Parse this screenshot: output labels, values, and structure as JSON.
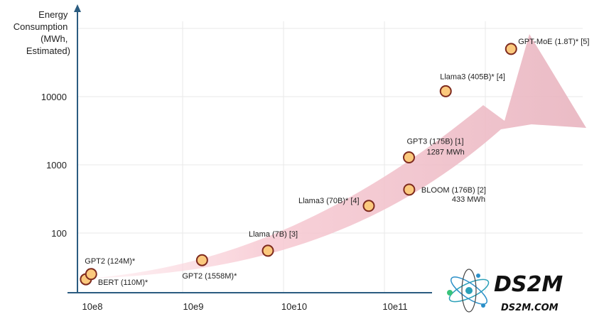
{
  "chart_data": {
    "type": "scatter",
    "ylabel_lines": [
      "Energy",
      "Consumption",
      "(MWh,",
      "Estimated)"
    ],
    "xscale": "log",
    "yscale": "log",
    "x_ticks": [
      "10e8",
      "10e9",
      "10e10",
      "10e11"
    ],
    "y_ticks": [
      "100",
      "1000",
      "10000"
    ],
    "grid": true,
    "points": [
      {
        "label": "BERT (110M)*",
        "x": 110000000,
        "y": 21
      },
      {
        "label": "GPT2 (124M)*",
        "x": 124000000,
        "y": 25
      },
      {
        "label": "GPT2 (1558M)*",
        "x": 1558000000,
        "y": 40
      },
      {
        "label": "Llama (7B) [3]",
        "x": 7000000000,
        "y": 55
      },
      {
        "label": "Llama3 (70B)* [4]",
        "x": 70000000000,
        "y": 250
      },
      {
        "label": "BLOOM (176B) [2]",
        "sublabel": "433 MWh",
        "x": 176000000000,
        "y": 433
      },
      {
        "label": "GPT3 (175B) [1]",
        "sublabel": "1287 MWh",
        "x": 175000000000,
        "y": 1287
      },
      {
        "label": "Llama3 (405B)* [4]",
        "x": 405000000000,
        "y": 12000
      },
      {
        "label": "GPT-MoE (1.8T)* [5]",
        "x": 1800000000000,
        "y": 50000
      }
    ]
  },
  "logo": {
    "name": "DS2M",
    "url": "DS2M.COM"
  },
  "colors": {
    "axis": "#2b5c80",
    "grid": "#e9e9e9",
    "marker_fill": "#fbc97d",
    "marker_stroke": "#7e2a1e",
    "arrow": "#f6cdd4"
  }
}
